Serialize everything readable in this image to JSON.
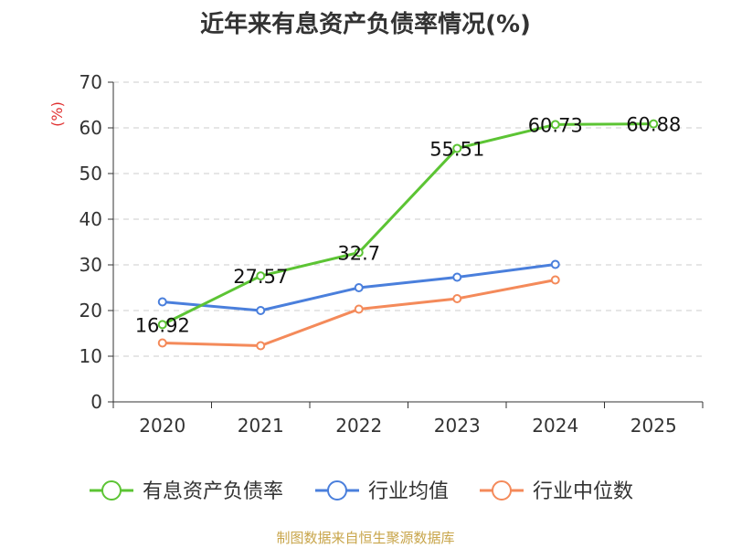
{
  "title": "近年来有息资产负债率情况(%)",
  "source": "制图数据来自恒生聚源数据库",
  "colors": {
    "source_text": "#c8a54a",
    "unit_text": "#e03030",
    "axis": "#333333",
    "grid": "#cccccc"
  },
  "chart_data": {
    "type": "line",
    "categories": [
      "2020",
      "2021",
      "2022",
      "2023",
      "2024",
      "2025"
    ],
    "y_unit": "(%)",
    "ylim": [
      0,
      70
    ],
    "yticks": [
      0,
      10,
      20,
      30,
      40,
      50,
      60,
      70
    ],
    "grid": true,
    "legend_position": "bottom",
    "series": [
      {
        "name": "有息资产负债率",
        "color": "#5cc434",
        "values": [
          16.92,
          27.57,
          32.7,
          55.51,
          60.73,
          60.88
        ],
        "labels": [
          "16.92",
          "27.57",
          "32.7",
          "55.51",
          "60.73",
          "60.88"
        ]
      },
      {
        "name": "行业均值",
        "color": "#4a7fdc",
        "values": [
          21.9,
          20.0,
          25.0,
          27.3,
          30.1,
          null
        ]
      },
      {
        "name": "行业中位数",
        "color": "#f48a5a",
        "values": [
          12.9,
          12.3,
          20.3,
          22.6,
          26.7,
          null
        ]
      }
    ]
  }
}
